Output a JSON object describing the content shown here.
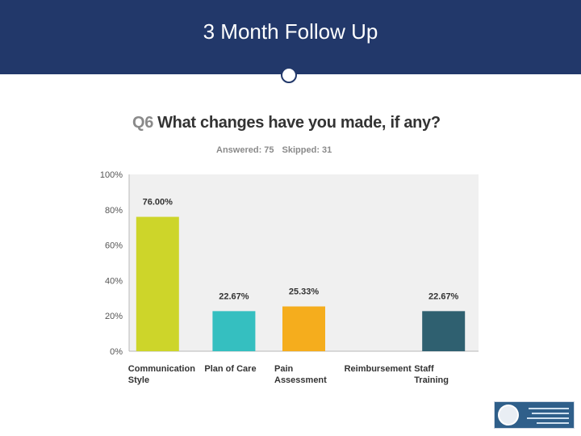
{
  "slide": {
    "title": "3 Month Follow Up",
    "header_color": "#22386a"
  },
  "survey": {
    "question_number": "Q6",
    "question_text": "What changes have you made, if any?",
    "answered": "Answered: 75",
    "skipped": "Skipped: 31"
  },
  "chart_data": {
    "type": "bar",
    "categories": [
      [
        "Communication",
        "Style"
      ],
      [
        "Plan of Care"
      ],
      [
        "Pain",
        "Assessment"
      ],
      [
        "Reimbursement"
      ],
      [
        "Staff",
        "Training"
      ]
    ],
    "values": [
      76.0,
      22.67,
      25.33,
      0,
      22.67
    ],
    "data_labels": [
      "76.00%",
      "22.67%",
      "25.33%",
      "",
      "22.67%"
    ],
    "colors": [
      "#cdd52a",
      "#35bfc0",
      "#f5ad1d",
      "#999999",
      "#2f6070"
    ],
    "ylim": [
      0,
      100
    ],
    "yticks": [
      0,
      20,
      40,
      60,
      80,
      100
    ],
    "ytick_labels": [
      "0%",
      "20%",
      "40%",
      "60%",
      "80%",
      "100%"
    ],
    "grid": false,
    "plot_background": "#f0f0f0"
  },
  "logo": {
    "icon": "department-seal-icon"
  }
}
